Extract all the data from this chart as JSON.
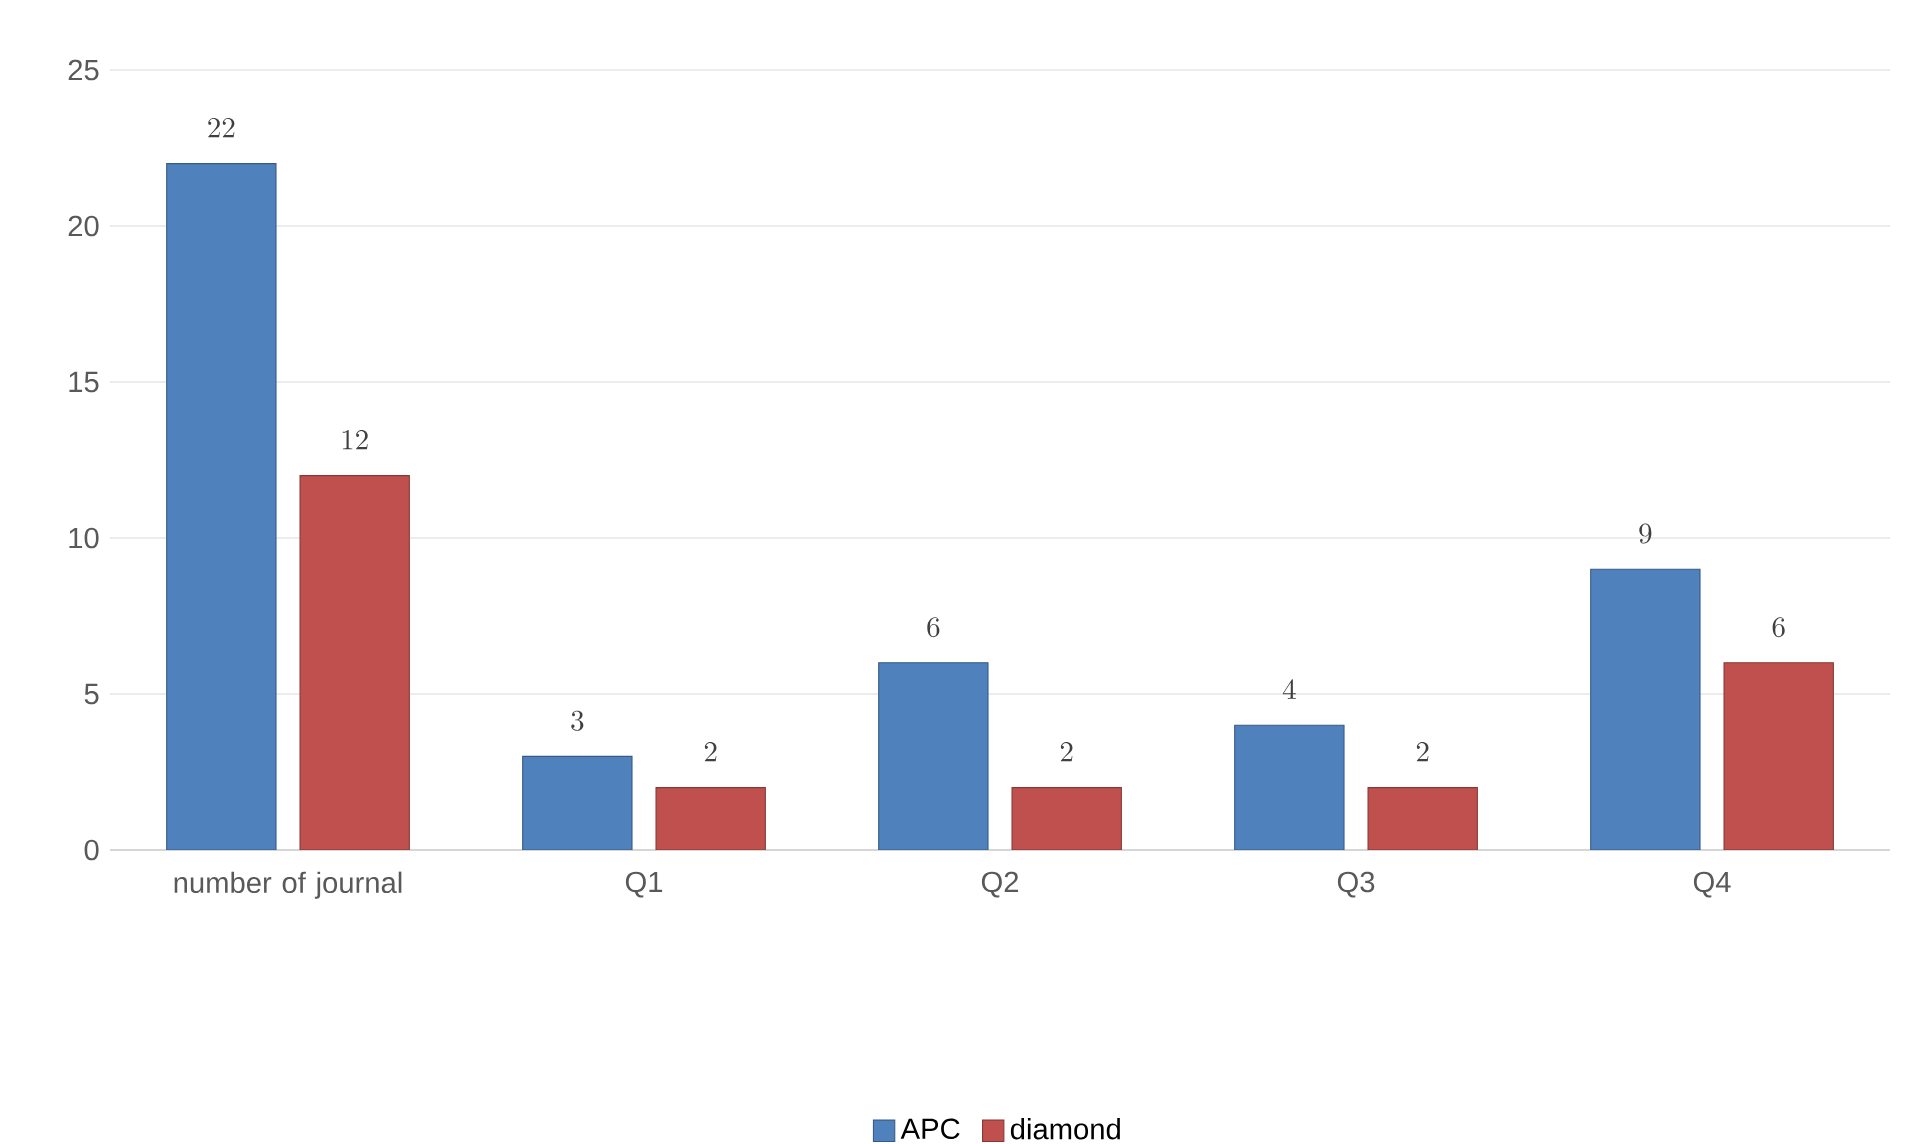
{
  "chart_data": {
    "type": "bar",
    "categories": [
      "number of journal",
      "Q1",
      "Q2",
      "Q3",
      "Q4"
    ],
    "series": [
      {
        "name": "APC",
        "color": "#4f81bd",
        "values": [
          22,
          3,
          6,
          4,
          9
        ]
      },
      {
        "name": "diamond",
        "color": "#c0504d",
        "values": [
          12,
          2,
          2,
          2,
          6
        ]
      }
    ],
    "ylim": [
      0,
      25
    ],
    "yticks": [
      0,
      5,
      10,
      15,
      20,
      25
    ],
    "grid": "y",
    "legend": "bottom",
    "data_labels": true
  }
}
